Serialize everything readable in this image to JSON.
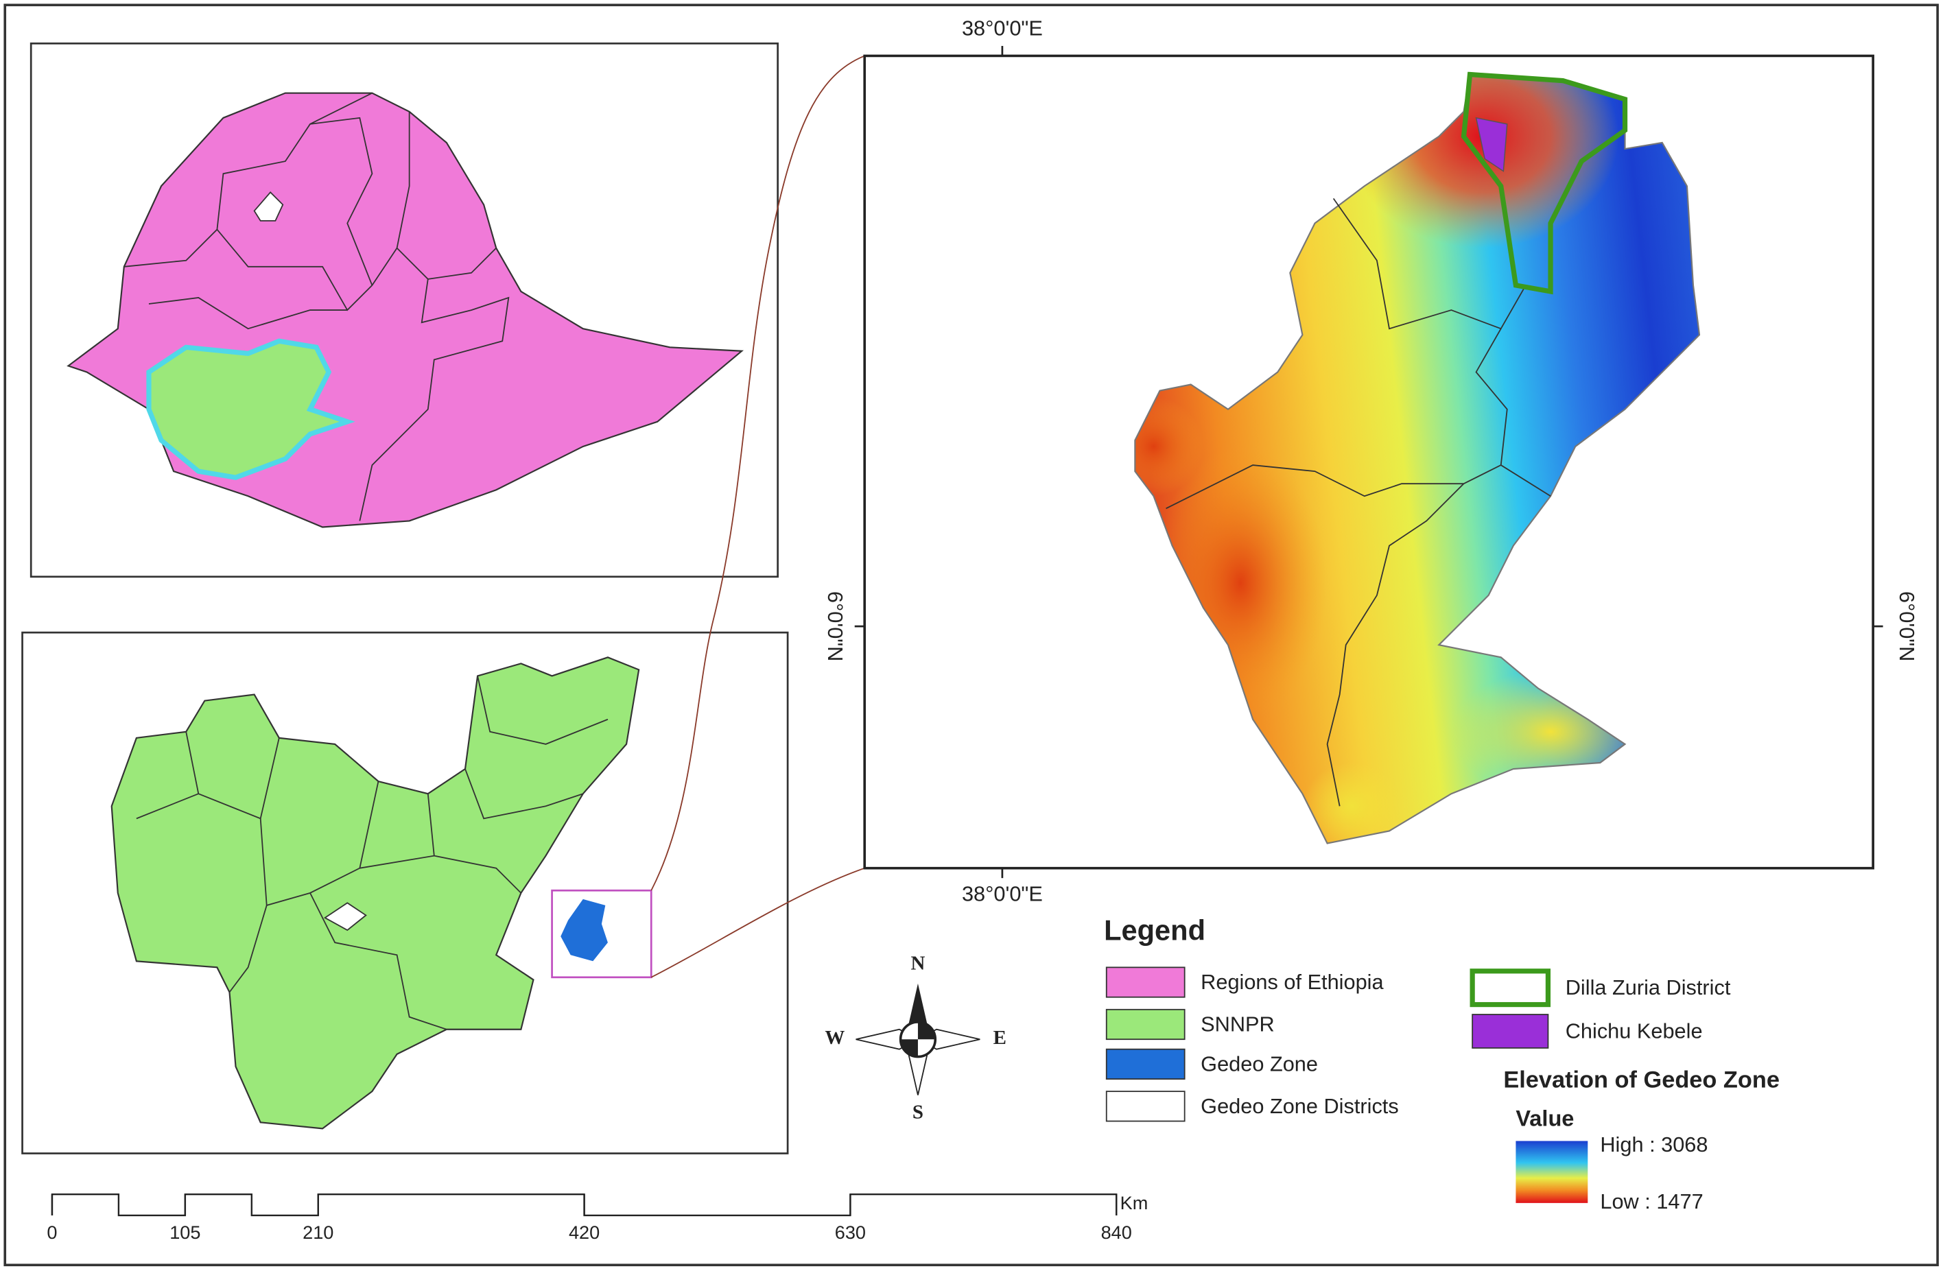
{
  "map": {
    "coordinates": {
      "top": "38°0'0\"E",
      "bottom": "38°0'0\"E",
      "left": "6°0'0\"N",
      "right": "6°0'0\"N"
    },
    "legend": {
      "title": "Legend",
      "items": [
        {
          "label": "Regions of Ethiopia",
          "fill": "#f07ad8",
          "stroke": "#333333"
        },
        {
          "label": "SNNPR",
          "fill": "#9be87a",
          "stroke": "#333333"
        },
        {
          "label": "Gedeo Zone",
          "fill": "#1f6fd8",
          "stroke": "#333333"
        },
        {
          "label": "Gedeo Zone Districts",
          "fill": "#ffffff",
          "stroke": "#333333"
        },
        {
          "label": "Dilla Zuria District",
          "fill": "#ffffff",
          "stroke": "#3c9a1c"
        },
        {
          "label": "Chichu Kebele",
          "fill": "#9a2fd8",
          "stroke": "#333333"
        }
      ],
      "elevation": {
        "title": "Elevation of Gedeo Zone",
        "subtitle": "Value",
        "high": "High : 3068",
        "low": "Low : 1477"
      }
    },
    "compass": {
      "n": "N",
      "s": "S",
      "w": "W",
      "e": "E"
    },
    "scale_bar": {
      "ticks": [
        0,
        105,
        210,
        420,
        630,
        840
      ],
      "unit": "Km"
    }
  }
}
